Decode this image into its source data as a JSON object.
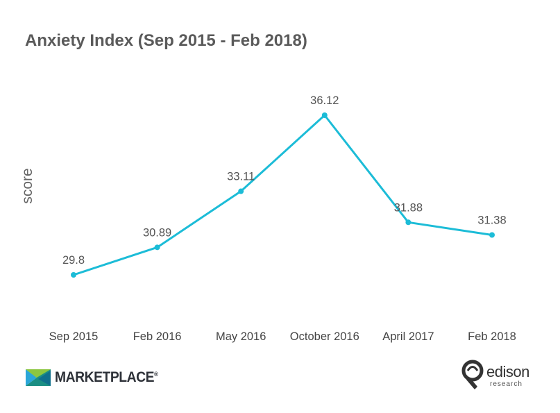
{
  "chart_data": {
    "type": "line",
    "title": "Anxiety Index (Sep 2015 - Feb 2018)",
    "xlabel": "",
    "ylabel": "score",
    "categories": [
      "Sep 2015",
      "Feb 2016",
      "May 2016",
      "October 2016",
      "April 2017",
      "Feb 2018"
    ],
    "series": [
      {
        "values": [
          29.8,
          30.89,
          33.11,
          36.12,
          31.88,
          31.38
        ],
        "labels": [
          "29.8",
          "30.89",
          "33.11",
          "36.12",
          "31.88",
          "31.38"
        ],
        "color": "#1cbcd7"
      }
    ],
    "grid": false,
    "legend": "none"
  },
  "logos": {
    "marketplace": {
      "text": "MARKETPLACE",
      "mark": "®"
    },
    "edison": {
      "name": "edison",
      "sub": "research"
    }
  }
}
